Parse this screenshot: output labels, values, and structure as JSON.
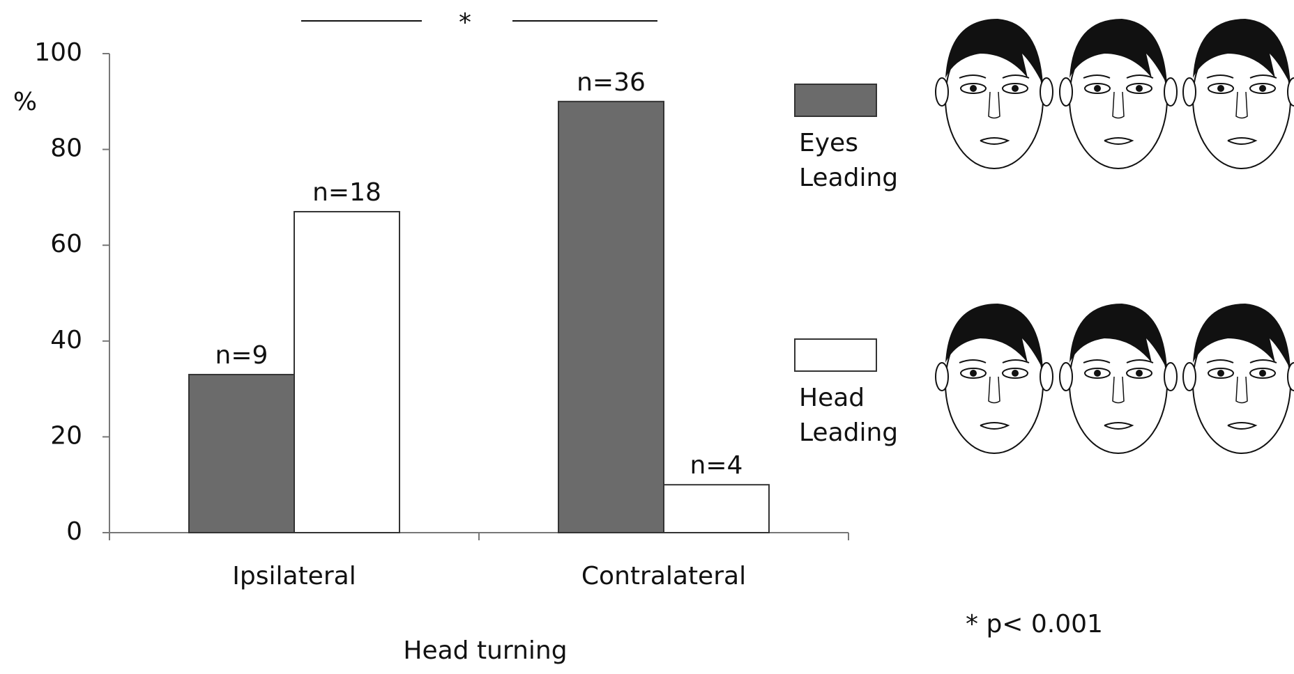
{
  "chart_data": {
    "type": "bar",
    "y_label": "%",
    "x_label": "Head turning",
    "categories": [
      "Ipsilateral",
      "Contralateral"
    ],
    "series": [
      {
        "name": "Eyes Leading",
        "color": "#6b6b6b",
        "values": [
          33,
          90
        ],
        "annotations": [
          "n=9",
          "n=36"
        ]
      },
      {
        "name": "Head Leading",
        "color": "#ffffff",
        "values": [
          67,
          10
        ],
        "annotations": [
          "n=18",
          "n=4"
        ]
      }
    ],
    "ylim": [
      0,
      100
    ],
    "yticks": [
      0,
      20,
      40,
      60,
      80,
      100
    ],
    "significance_marker": "*",
    "significance_note": "* p< 0.001",
    "grid": false
  }
}
